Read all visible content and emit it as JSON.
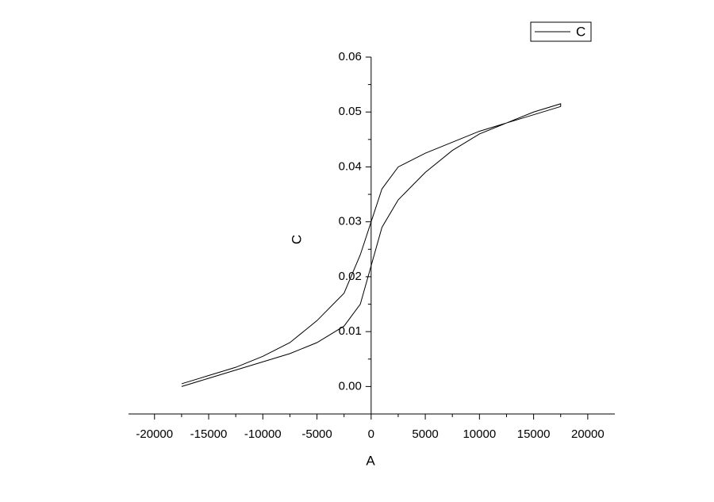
{
  "chart_data": {
    "type": "line",
    "x_label": "A",
    "y_label": "C",
    "x": [
      -17500,
      -15000,
      -12500,
      -10000,
      -7500,
      -5000,
      -2500,
      -1000,
      0,
      1000,
      2500,
      5000,
      7500,
      10000,
      12500,
      15000,
      17500,
      17500,
      15000,
      12500,
      10000,
      7500,
      5000,
      2500,
      1000,
      0,
      -1000,
      -2500,
      -5000,
      -7500,
      -10000,
      -12500,
      -15000,
      -17500
    ],
    "series": [
      {
        "name": "C",
        "color": "#000000",
        "values": [
          0.0,
          0.0015,
          0.003,
          0.0045,
          0.006,
          0.008,
          0.011,
          0.015,
          0.022,
          0.029,
          0.034,
          0.039,
          0.043,
          0.046,
          0.048,
          0.0495,
          0.051,
          0.0515,
          0.05,
          0.048,
          0.0465,
          0.0445,
          0.0425,
          0.04,
          0.036,
          0.03,
          0.024,
          0.017,
          0.012,
          0.008,
          0.0055,
          0.0035,
          0.002,
          0.0005
        ]
      }
    ],
    "xlim": [
      -22400,
      22500
    ],
    "ylim": [
      -0.005,
      0.06
    ],
    "xticks": [
      -20000,
      -15000,
      -10000,
      -5000,
      0,
      5000,
      10000,
      15000,
      20000
    ],
    "yticks": [
      {
        "value": 0,
        "label": "0.00"
      },
      0.01,
      0.02,
      0.03,
      0.04,
      0.05,
      0.06
    ],
    "xminorticks": [
      -17500,
      -12500,
      -7500,
      -2500,
      2500,
      7500,
      12500,
      17500
    ],
    "yminorticks": [
      -0.005,
      0.005,
      0.015,
      0.025,
      0.035,
      0.045,
      0.055
    ],
    "legend": "top-right"
  }
}
